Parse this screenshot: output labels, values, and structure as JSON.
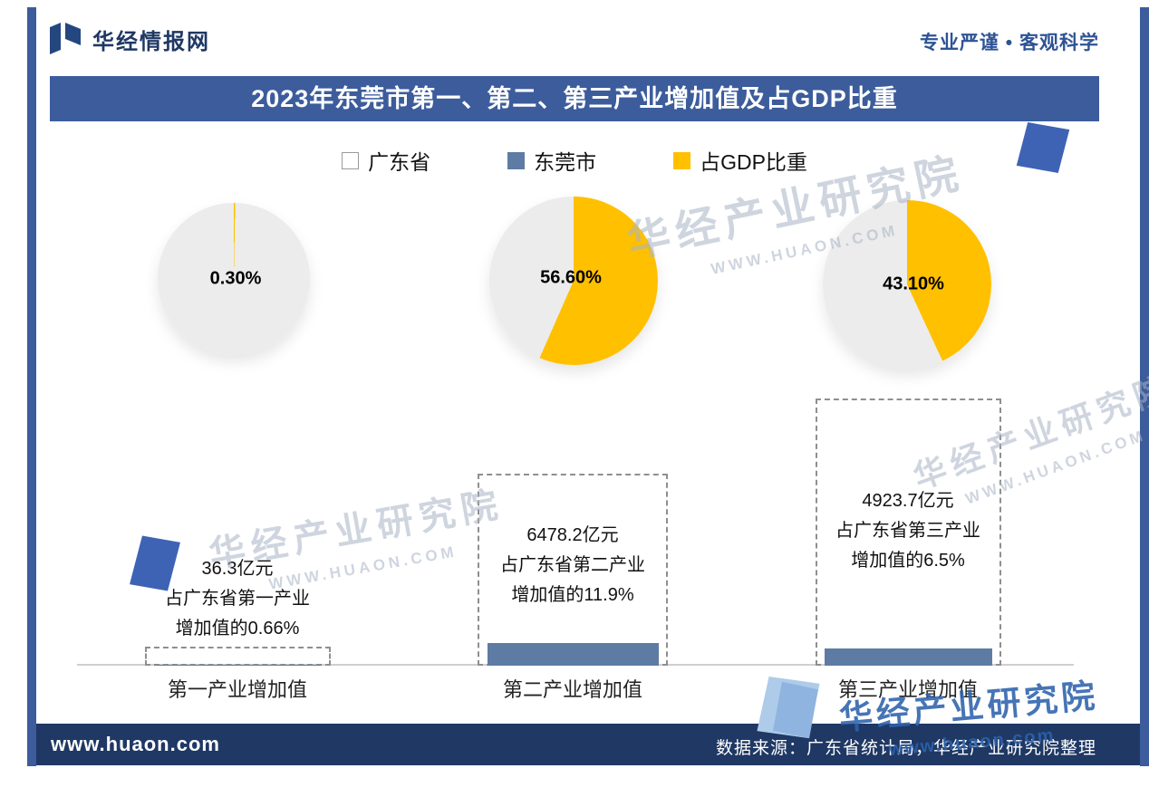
{
  "header": {
    "brand": "华经情报网",
    "slogan": "专业严谨 • 客观科学"
  },
  "title": "2023年东莞市第一、第二、第三产业增加值及占GDP比重",
  "legend": {
    "items": [
      {
        "label": "广东省"
      },
      {
        "label": "东莞市"
      },
      {
        "label": "占GDP比重"
      }
    ]
  },
  "chart_data": {
    "type": "pie",
    "title": "2023年东莞市第一、第二、第三产业增加值及占GDP比重",
    "legend": [
      "广东省",
      "东莞市",
      "占GDP比重"
    ],
    "legend_position": "top",
    "colors": {
      "share_of_gdp": "#FFC000",
      "rest": "#ECECEC",
      "dongguan_bar": "#5E7BA3"
    },
    "pies": [
      {
        "category": "第一产业增加值",
        "share_pct": 0.3,
        "label": "0.30%"
      },
      {
        "category": "第二产业增加值",
        "share_pct": 56.6,
        "label": "56.60%"
      },
      {
        "category": "第三产业增加值",
        "share_pct": 43.1,
        "label": "43.10%"
      }
    ],
    "bars": [
      {
        "category": "第一产业增加值",
        "dongguan_yi": 36.3,
        "share_of_guangdong_pct": 0.66,
        "value_line": "36.3亿元",
        "share_line1": "占广东省第一产业",
        "share_line2": "增加值的0.66%"
      },
      {
        "category": "第二产业增加值",
        "dongguan_yi": 6478.2,
        "share_of_guangdong_pct": 11.9,
        "value_line": "6478.2亿元",
        "share_line1": "占广东省第二产业",
        "share_line2": "增加值的11.9%"
      },
      {
        "category": "第三产业增加值",
        "dongguan_yi": 4923.7,
        "share_of_guangdong_pct": 6.5,
        "value_line": "4923.7亿元",
        "share_line1": "占广东省第三产业",
        "share_line2": "增加值的6.5%"
      }
    ]
  },
  "watermarks": {
    "name": "华经产业研究院",
    "url_upper": "WWW.HUAON.COM",
    "url_lower": "www.huaon.com"
  },
  "footer": {
    "site": "www.huaon.com",
    "source": "数据来源：广东省统计局，华经产业研究院整理"
  }
}
